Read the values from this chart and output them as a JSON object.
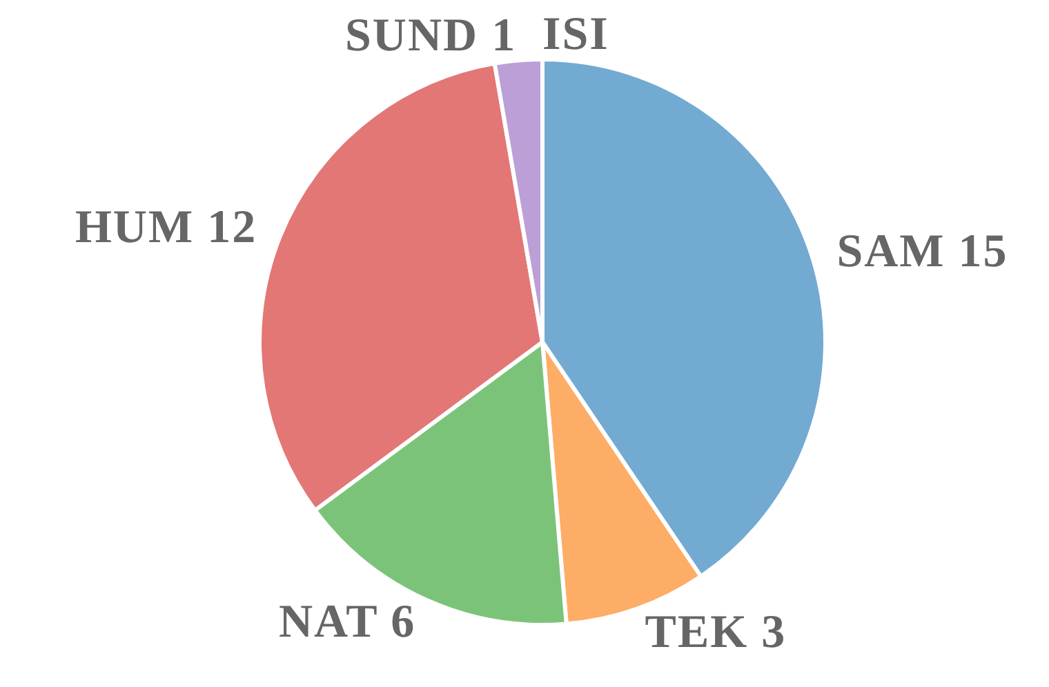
{
  "chart_data": {
    "type": "pie",
    "categories": [
      "SAM",
      "TEK",
      "NAT",
      "HUM",
      "SUND",
      "ISI"
    ],
    "values": [
      15,
      3,
      6,
      12,
      1,
      0
    ],
    "colors": [
      "#72aad2",
      "#fdad66",
      "#7cc37a",
      "#e27776",
      "#bc9fd6",
      null
    ],
    "value_labels": [
      "15",
      "3",
      "6",
      "12",
      "1",
      null
    ]
  }
}
